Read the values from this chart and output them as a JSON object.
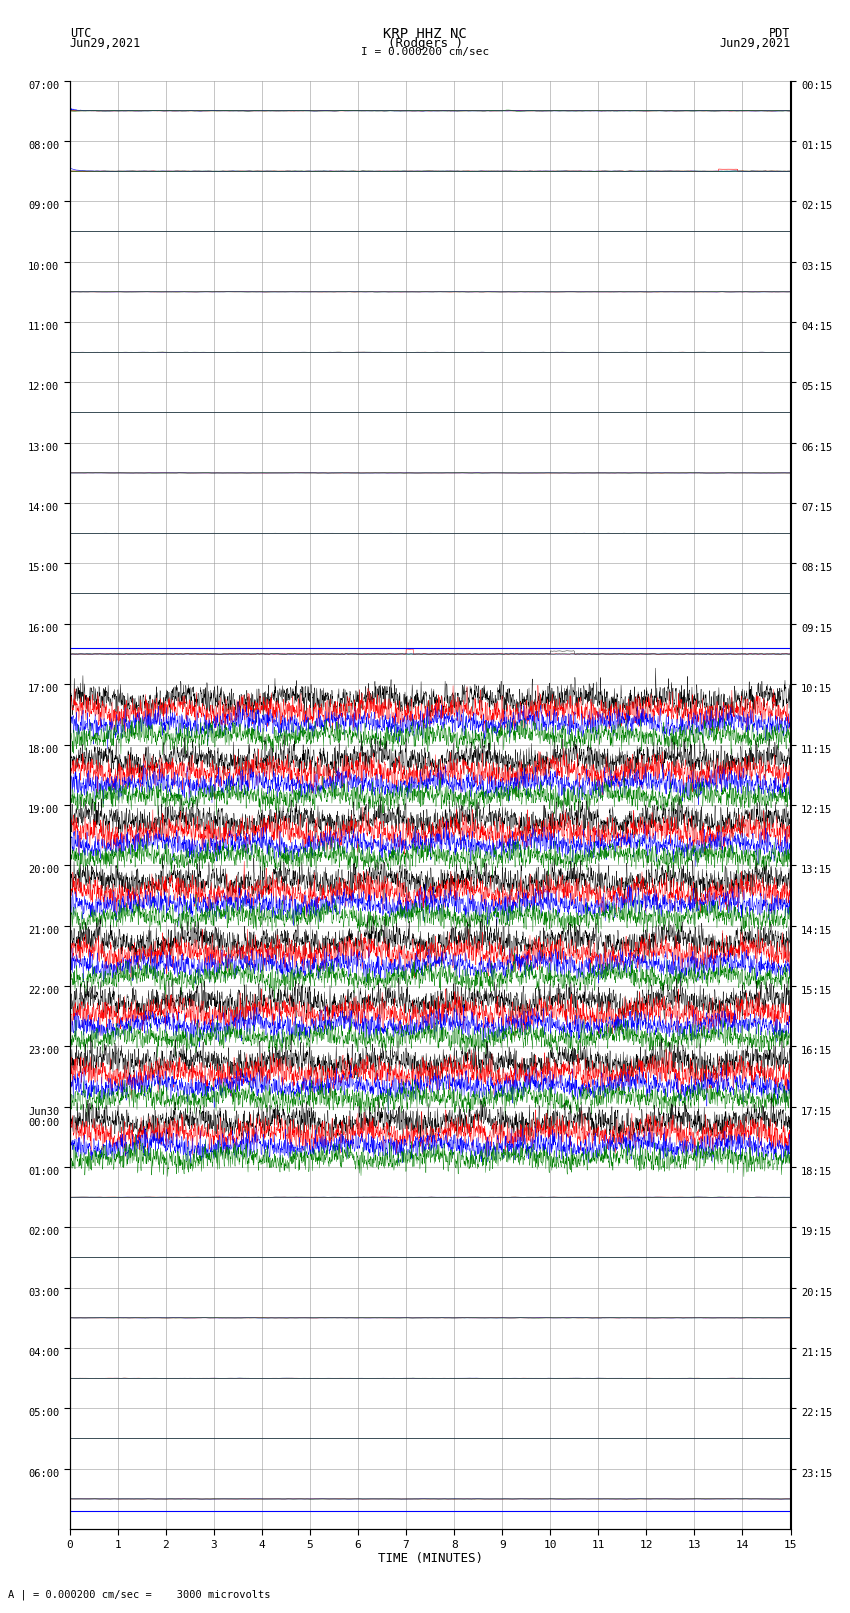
{
  "title_line1": "KRP HHZ NC",
  "title_line2": "(Rodgers )",
  "title_line3": "I = 0.000200 cm/sec",
  "label_left_top": "UTC",
  "label_left_date": "Jun29,2021",
  "label_right_top": "PDT",
  "label_right_date": "Jun29,2021",
  "xlabel": "TIME (MINUTES)",
  "bottom_note": "A | = 0.000200 cm/sec =    3000 microvolts",
  "utc_times": [
    "07:00",
    "08:00",
    "09:00",
    "10:00",
    "11:00",
    "12:00",
    "13:00",
    "14:00",
    "15:00",
    "16:00",
    "17:00",
    "18:00",
    "19:00",
    "20:00",
    "21:00",
    "22:00",
    "23:00",
    "Jun30\n00:00",
    "01:00",
    "02:00",
    "03:00",
    "04:00",
    "05:00",
    "06:00"
  ],
  "pdt_times": [
    "00:15",
    "01:15",
    "02:15",
    "03:15",
    "04:15",
    "05:15",
    "06:15",
    "07:15",
    "08:15",
    "09:15",
    "10:15",
    "11:15",
    "12:15",
    "13:15",
    "14:15",
    "15:15",
    "16:15",
    "17:15",
    "18:15",
    "19:15",
    "20:15",
    "21:15",
    "22:15",
    "23:15"
  ],
  "n_rows": 24,
  "x_ticks": [
    0,
    1,
    2,
    3,
    4,
    5,
    6,
    7,
    8,
    9,
    10,
    11,
    12,
    13,
    14,
    15
  ],
  "x_max": 15,
  "bg_color": "#ffffff",
  "grid_color": "#999999",
  "colors": [
    "black",
    "red",
    "blue",
    "green"
  ]
}
